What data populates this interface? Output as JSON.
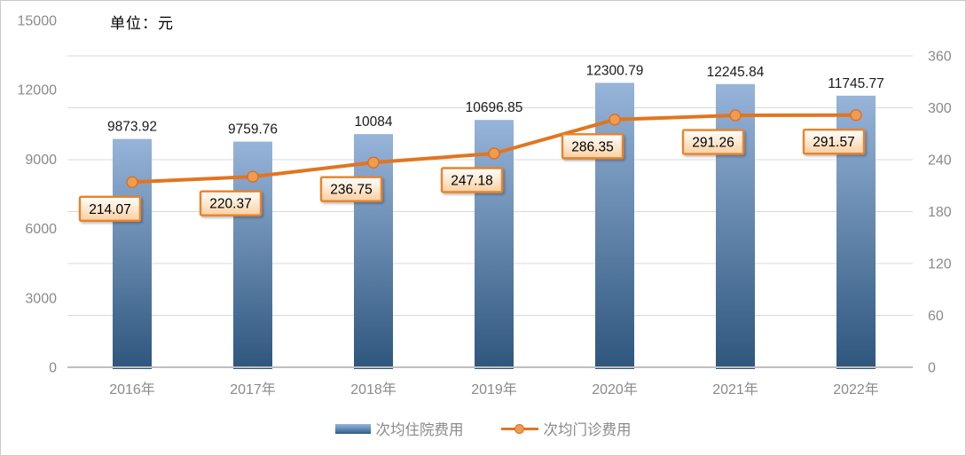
{
  "unit_label": "单位：元",
  "chart_data": {
    "type": "combo",
    "title": "",
    "unit": "单位：元",
    "categories": [
      "2016年",
      "2017年",
      "2018年",
      "2019年",
      "2020年",
      "2021年",
      "2022年"
    ],
    "series": [
      {
        "name": "次均住院费用",
        "type": "bar",
        "axis": "left",
        "values": [
          9873.92,
          9759.76,
          10084,
          10696.85,
          12300.79,
          12245.84,
          11745.77
        ],
        "labels": [
          "9873.92",
          "9759.76",
          "10084",
          "10696.85",
          "12300.79",
          "12245.84",
          "11745.77"
        ]
      },
      {
        "name": "次均门诊费用",
        "type": "line",
        "axis": "right",
        "values": [
          214.07,
          220.37,
          236.75,
          247.18,
          286.35,
          291.26,
          291.57
        ],
        "labels": [
          "214.07",
          "220.37",
          "236.75",
          "247.18",
          "286.35",
          "291.26",
          "291.57"
        ]
      }
    ],
    "left_axis": {
      "min": 0,
      "max": 15000,
      "step": 3000,
      "ticks": [
        "0",
        "3000",
        "6000",
        "9000",
        "12000",
        "15000"
      ]
    },
    "right_axis": {
      "min": 0,
      "max": 360,
      "step": 60,
      "ticks": [
        "0",
        "60",
        "120",
        "180",
        "240",
        "300",
        "360"
      ]
    },
    "grid": true,
    "legend_position": "bottom"
  },
  "colors": {
    "bar_gradient_top": "#97b4d9",
    "bar_gradient_bottom": "#2e567d",
    "line": "#e2751f",
    "marker_fill": "#f09c4e",
    "marker_stroke": "#dd6b1f",
    "label_box_border": "#e8832c",
    "label_box_fill_top": "#ffffff",
    "label_box_fill_bottom": "#fbd0a2",
    "gridline": "#d9d9d9",
    "axis_line": "#bfbfbf",
    "axis_text": "#8a8a8a",
    "data_label": "#1a1a1a"
  }
}
